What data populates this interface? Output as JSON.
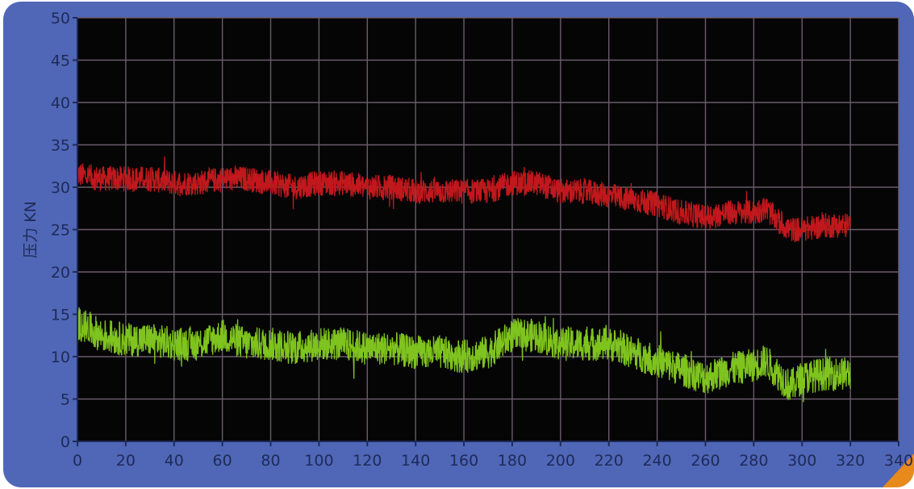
{
  "colors": {
    "frame": "#4f67b6",
    "plot_bg": "#050505",
    "grid": "#6b5b6b",
    "axis": "#1f2a5a",
    "corner_accent": "#e8891c"
  },
  "chart_data": {
    "type": "line",
    "title": "",
    "xlabel": "",
    "ylabel": "压力 KN",
    "xlim": [
      0,
      340
    ],
    "ylim": [
      0,
      50
    ],
    "x_ticks": [
      0,
      20,
      40,
      60,
      80,
      100,
      120,
      140,
      160,
      180,
      200,
      220,
      240,
      260,
      280,
      300,
      320,
      340
    ],
    "y_ticks": [
      0,
      5,
      10,
      15,
      20,
      25,
      30,
      35,
      40,
      45,
      50
    ],
    "grid": true,
    "legend": "none",
    "series": [
      {
        "color": "#c0181c",
        "x": [
          0,
          10,
          20,
          30,
          40,
          50,
          60,
          70,
          80,
          90,
          100,
          110,
          120,
          130,
          140,
          150,
          160,
          170,
          180,
          190,
          200,
          210,
          220,
          230,
          240,
          250,
          260,
          270,
          280,
          285,
          290,
          295,
          300,
          310,
          320
        ],
        "center": [
          31.5,
          31,
          31,
          31,
          30.5,
          30.5,
          31,
          31,
          30.5,
          30,
          30.5,
          30.5,
          30,
          30,
          29.5,
          29.5,
          29.5,
          29.5,
          30.5,
          30.5,
          29.5,
          29.5,
          29,
          28.5,
          28,
          27,
          26.5,
          27,
          27,
          27.5,
          26,
          25,
          25,
          25.5,
          25.5
        ],
        "amplitude": [
          1.5,
          1.5,
          1.5,
          1.5,
          1.5,
          1.5,
          1.5,
          1.5,
          1.5,
          1.5,
          1.5,
          1.5,
          1.5,
          1.5,
          1.5,
          1.5,
          1.5,
          1.5,
          1.5,
          1.5,
          1.5,
          1.5,
          1.5,
          1.5,
          1.5,
          1.5,
          1.5,
          1.5,
          1.5,
          1.5,
          1.5,
          1.5,
          1.5,
          1.5,
          1.5
        ]
      },
      {
        "color": "#7fc31e",
        "x": [
          0,
          10,
          20,
          30,
          40,
          50,
          60,
          70,
          80,
          90,
          100,
          110,
          120,
          130,
          140,
          150,
          160,
          170,
          180,
          190,
          200,
          210,
          220,
          230,
          240,
          250,
          260,
          270,
          280,
          285,
          290,
          295,
          300,
          310,
          320
        ],
        "center": [
          14,
          12.5,
          12,
          12,
          11.5,
          11.5,
          12.5,
          11.5,
          11.5,
          11,
          11.5,
          11.5,
          11,
          11,
          10.5,
          10.5,
          10,
          10.5,
          12.5,
          12.5,
          11.5,
          11.5,
          11.5,
          10.5,
          9.5,
          8.5,
          7.5,
          8.5,
          9,
          9.5,
          8,
          6.5,
          7.5,
          8,
          8
        ],
        "amplitude": [
          2,
          2,
          2,
          2,
          2,
          2,
          2,
          2,
          2,
          2,
          2,
          2,
          2,
          2,
          2,
          2,
          2,
          2,
          2,
          2,
          2,
          2,
          2,
          2,
          2,
          2,
          2,
          2,
          2,
          2,
          2,
          2,
          2,
          2,
          2
        ]
      }
    ]
  }
}
